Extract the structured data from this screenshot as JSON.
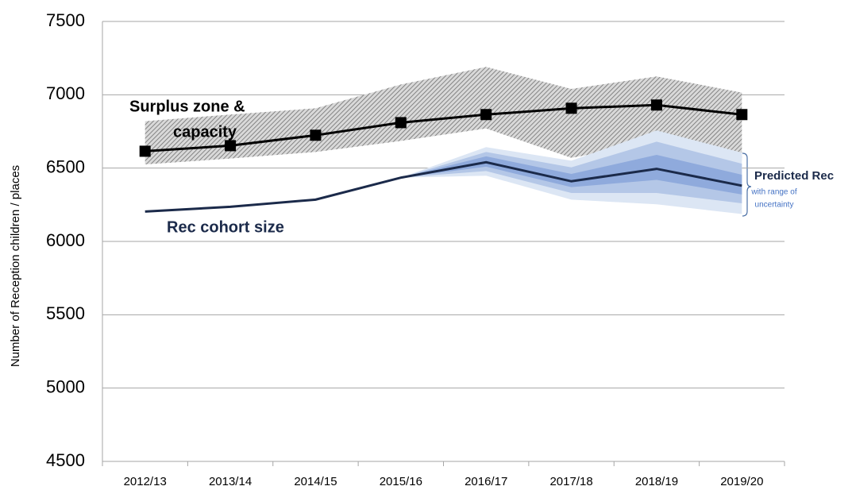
{
  "chart_data": {
    "type": "line",
    "y_label": "Number of Reception children / places",
    "categories": [
      "2012/13",
      "2013/14",
      "2014/15",
      "2015/16",
      "2016/17",
      "2017/18",
      "2018/19",
      "2019/20"
    ],
    "ylim": [
      4500,
      7500
    ],
    "yticks": [
      4500,
      5000,
      5500,
      6000,
      6500,
      7000,
      7500
    ],
    "grid": true,
    "series": [
      {
        "name": "Capacity",
        "color": "#000000",
        "marker": "square",
        "values": [
          6615,
          6653,
          6724,
          6810,
          6865,
          6908,
          6930,
          6865
        ]
      },
      {
        "name": "Rec cohort size",
        "color": "#1b2a4a",
        "values": [
          6204,
          6236,
          6285,
          6435,
          6540,
          6410,
          6495,
          6380
        ]
      }
    ],
    "surplus_zone": {
      "color": "#777777",
      "upper": [
        6820,
        6865,
        6908,
        7070,
        7190,
        7040,
        7125,
        7015
      ],
      "lower": [
        6525,
        6565,
        6610,
        6685,
        6770,
        6570,
        6675,
        6550
      ]
    },
    "uncertainty_bands": [
      {
        "color": "#dce6f4",
        "upper": [
          null,
          null,
          null,
          6435,
          6643,
          6550,
          6757,
          6605
        ],
        "lower": [
          null,
          null,
          null,
          6435,
          6448,
          6285,
          6253,
          6187
        ]
      },
      {
        "color": "#b4c7e7",
        "upper": [
          null,
          null,
          null,
          6435,
          6610,
          6505,
          6680,
          6530
        ],
        "lower": [
          null,
          null,
          null,
          6435,
          6480,
          6330,
          6330,
          6260
        ]
      },
      {
        "color": "#8faadc",
        "upper": [
          null,
          null,
          null,
          6435,
          6580,
          6460,
          6590,
          6455
        ],
        "lower": [
          null,
          null,
          null,
          6435,
          6510,
          6370,
          6420,
          6320
        ]
      }
    ],
    "annotations": [
      "Surplus zone &",
      "capacity",
      "Rec cohort size",
      "Predicted Rec",
      "with range of",
      "uncertainty"
    ]
  }
}
